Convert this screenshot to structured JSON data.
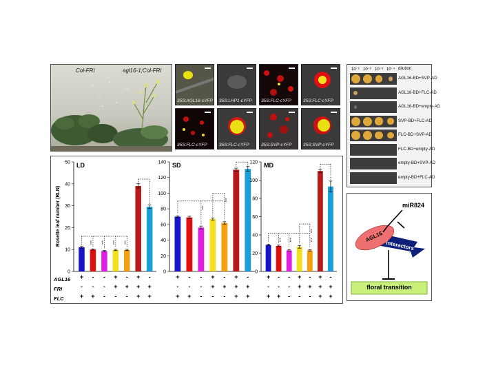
{
  "plant_photo": {
    "label_left": "Col-FRI",
    "label_right": "agl16-1;Col-FRI"
  },
  "microscopy": [
    {
      "label": "35S:AGL16-cYFP"
    },
    {
      "label": "35S:LHP1-cYFP"
    },
    {
      "label": "35S:FLC-cYFP"
    },
    {
      "label": "35S:FLC-cYFP"
    },
    {
      "label": "35S:FLC-cYFP"
    },
    {
      "label": "35S:FLC-cYFP"
    },
    {
      "label": "35S:SVP-cYFP"
    },
    {
      "label": "35S:SVP-cYFP"
    }
  ],
  "y2h": {
    "dilutions": [
      "10⁻¹",
      "10⁻²",
      "10⁻³",
      "10⁻⁴"
    ],
    "dilution_label": "dilution",
    "rows": [
      {
        "label": "AGL16-BD+SVP-AD",
        "growth": [
          1,
          1,
          0.7,
          0.3
        ]
      },
      {
        "label": "AGL16-BD+FLC-AD",
        "growth": [
          0.2,
          0,
          0,
          0
        ]
      },
      {
        "label": "AGL16-BD+empty-AD",
        "growth": [
          0.1,
          0,
          0,
          0
        ]
      },
      {
        "label": "SVP-BD+FLC-AD",
        "growth": [
          1,
          1,
          0.8,
          0.6
        ]
      },
      {
        "label": "FLC-BD+SVP-AD",
        "growth": [
          1,
          1,
          0.8,
          0.6
        ]
      },
      {
        "label": "FLC-BD+empty-AD",
        "growth": [
          0,
          0,
          0,
          0
        ]
      },
      {
        "label": "empty-BD+SVP-AD",
        "growth": [
          0,
          0,
          0,
          0
        ]
      },
      {
        "label": "empty-BD+FLC-AD",
        "growth": [
          0,
          0,
          0,
          0
        ]
      }
    ]
  },
  "chart_data": {
    "type": "bar",
    "ylabel": "Rosette leaf number (RLN)",
    "colors": [
      "#1616c8",
      "#e01010",
      "#e020e0",
      "#f2e020",
      "#f5a010",
      "#b81a1a",
      "#1aa0d8"
    ],
    "genotype_rows": [
      {
        "label": "AGL16",
        "values": [
          "+",
          "-",
          "-",
          "+",
          "-",
          "+",
          "-"
        ]
      },
      {
        "label": "FRI",
        "values": [
          "-",
          "-",
          "-",
          "+",
          "+",
          "+",
          "+"
        ]
      },
      {
        "label": "FLC",
        "values": [
          "+",
          "+",
          "-",
          "-",
          "-",
          "+",
          "+"
        ]
      }
    ],
    "panels": [
      {
        "title": "LD",
        "ylim": [
          0,
          50
        ],
        "yticks": [
          "0",
          "10",
          "20",
          "30",
          "40",
          "50"
        ],
        "values": [
          11,
          10,
          9.3,
          9.8,
          9.8,
          39,
          29.5
        ],
        "errors": [
          0.4,
          0.3,
          0.3,
          0.3,
          0.3,
          1,
          0.8
        ],
        "sig": [
          "***",
          "***",
          "***",
          "***"
        ]
      },
      {
        "title": "SD",
        "ylim": [
          0,
          140
        ],
        "yticks": [
          "0",
          "20",
          "40",
          "60",
          "80",
          "100",
          "120",
          "140"
        ],
        "values": [
          70,
          69,
          56,
          67,
          62,
          130,
          131
        ],
        "errors": [
          1,
          1.5,
          2,
          1.5,
          1.5,
          2,
          3
        ],
        "sig": [
          "***",
          "***"
        ]
      },
      {
        "title": "MD",
        "ylim": [
          0,
          120
        ],
        "yticks": [
          "0",
          "20",
          "40",
          "60",
          "80",
          "100",
          "120"
        ],
        "values": [
          29,
          28,
          23,
          27,
          23,
          110,
          93
        ],
        "errors": [
          0.8,
          0.8,
          0.7,
          1.5,
          0.7,
          1.5,
          6
        ],
        "sig": [
          "***",
          "***",
          "***",
          "***"
        ]
      }
    ]
  },
  "model": {
    "mirna": "miR824",
    "agl16": "AGL16",
    "interactors": "interactors",
    "floral": "floral transition"
  }
}
